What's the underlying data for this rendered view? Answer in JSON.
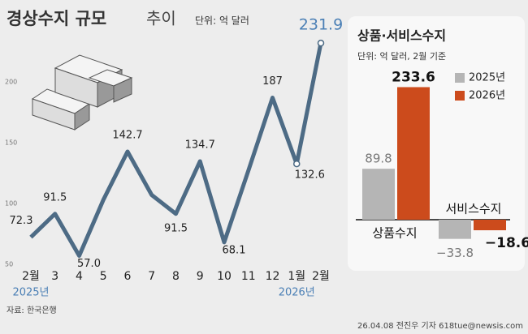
{
  "chart_data": [
    {
      "type": "line",
      "title": "경상수지 규모",
      "subtitle": "추이",
      "unit": "단위: 억 달러",
      "categories": [
        "2월",
        "3",
        "4",
        "5",
        "6",
        "7",
        "8",
        "9",
        "10",
        "11",
        "12",
        "1월",
        "2월"
      ],
      "year_labels": [
        "2025년",
        null,
        null,
        null,
        null,
        null,
        null,
        null,
        null,
        null,
        null,
        "2026년",
        null
      ],
      "values": [
        72.3,
        91.5,
        57,
        103,
        142.7,
        107,
        91.5,
        134.7,
        68.1,
        127,
        187,
        132.6,
        231.9
      ],
      "value_labels": [
        "72.3",
        "91.5",
        "57.0",
        null,
        "142.7",
        null,
        "91.5",
        "134.7",
        "68.1",
        null,
        "187",
        "132.6",
        "231.9"
      ],
      "color": "#4d6b85",
      "ylim": [
        50,
        250
      ],
      "yticks": [
        50,
        100,
        150,
        200
      ]
    },
    {
      "type": "bar",
      "title": "상품·서비스수지",
      "unit": "단위: 억 달러, 2월 기준",
      "categories": [
        "상품수지",
        "서비스수지"
      ],
      "series": [
        {
          "name": "2025년",
          "color": "#b5b5b5",
          "values": [
            89.8,
            -33.8
          ],
          "value_labels": [
            "89.8",
            "−33.8"
          ]
        },
        {
          "name": "2026년",
          "color": "#cc4b1c",
          "values": [
            233.6,
            -18.6
          ],
          "value_labels": [
            "233.6",
            "−18.6"
          ]
        }
      ]
    }
  ],
  "source": "자료: 한국은행",
  "credit": "26.04.08 전진우 기자 618tue@newsis.com"
}
